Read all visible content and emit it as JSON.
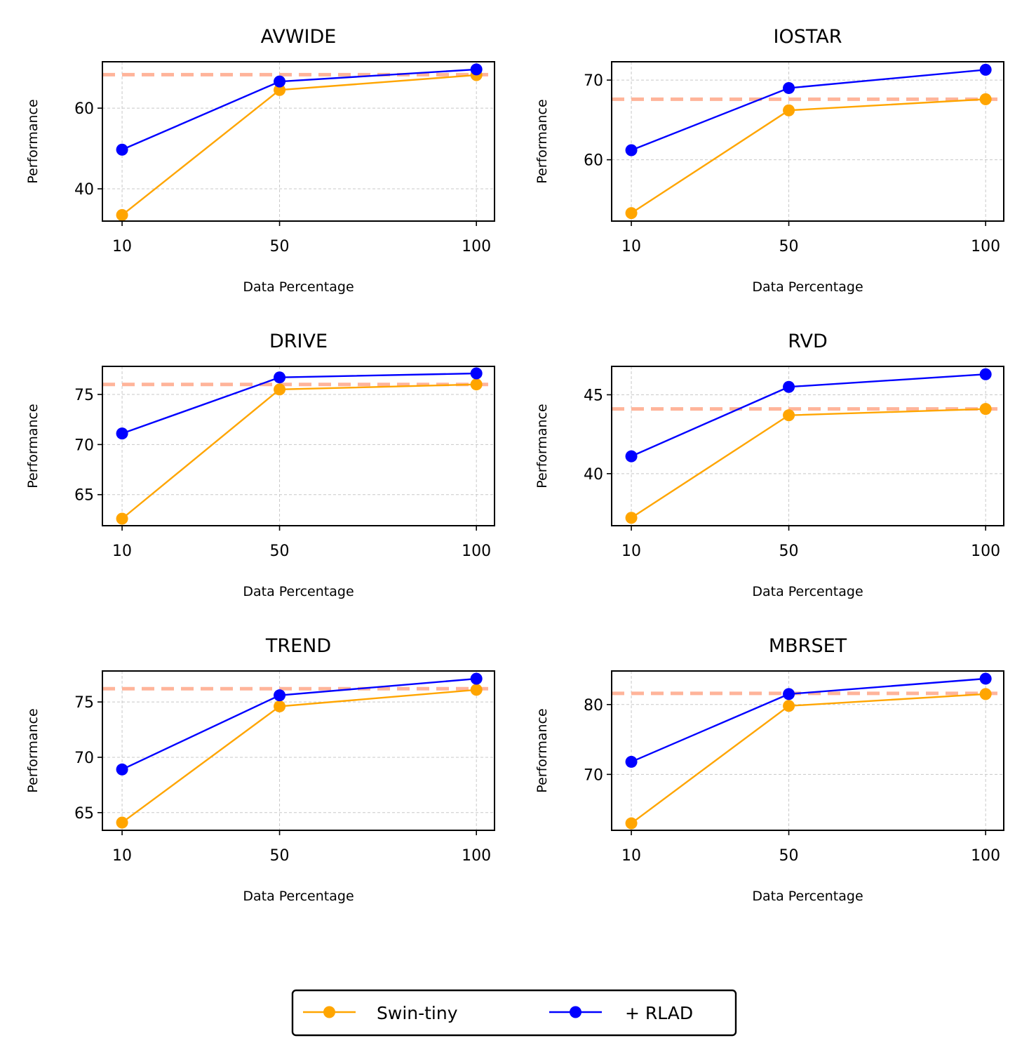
{
  "chart_data": {
    "type": "line",
    "legend": {
      "placement": "bottom-center",
      "entries": [
        {
          "name": "Swin-tiny",
          "color": "#FFA500"
        },
        {
          "name": "+ RLAD",
          "color": "#0000FF"
        }
      ]
    },
    "reference_line_color": "#FFB49A",
    "grid": true,
    "xlabel": "Data Percentage",
    "ylabel": "Performance",
    "x": [
      10,
      50,
      100
    ],
    "x_ticks": [
      "10",
      "50",
      "100"
    ],
    "panels": [
      {
        "title": "AVWIDE",
        "ylim": [
          32,
          71.5
        ],
        "yticks": [
          40,
          60
        ],
        "reference": 68.3,
        "series": [
          {
            "name": "Swin-tiny",
            "values": [
              33.5,
              64.5,
              68.2
            ]
          },
          {
            "name": "+ RLAD",
            "values": [
              49.7,
              66.6,
              69.6
            ]
          }
        ]
      },
      {
        "title": "IOSTAR",
        "ylim": [
          52.3,
          72.3
        ],
        "yticks": [
          60,
          70
        ],
        "reference": 67.6,
        "series": [
          {
            "name": "Swin-tiny",
            "values": [
              53.3,
              66.2,
              67.6
            ]
          },
          {
            "name": "+ RLAD",
            "values": [
              61.2,
              69.0,
              71.3
            ]
          }
        ]
      },
      {
        "title": "DRIVE",
        "ylim": [
          61.9,
          77.8
        ],
        "yticks": [
          65,
          70,
          75
        ],
        "reference": 76.0,
        "series": [
          {
            "name": "Swin-tiny",
            "values": [
              62.6,
              75.5,
              76.0
            ]
          },
          {
            "name": "+ RLAD",
            "values": [
              71.1,
              76.7,
              77.1
            ]
          }
        ]
      },
      {
        "title": "RVD",
        "ylim": [
          36.7,
          46.8
        ],
        "yticks": [
          40,
          45
        ],
        "reference": 44.1,
        "series": [
          {
            "name": "Swin-tiny",
            "values": [
              37.2,
              43.7,
              44.1
            ]
          },
          {
            "name": "+ RLAD",
            "values": [
              41.1,
              45.5,
              46.3
            ]
          }
        ]
      },
      {
        "title": "TREND",
        "ylim": [
          63.4,
          77.8
        ],
        "yticks": [
          65,
          70,
          75
        ],
        "reference": 76.2,
        "series": [
          {
            "name": "Swin-tiny",
            "values": [
              64.1,
              74.6,
              76.1
            ]
          },
          {
            "name": "+ RLAD",
            "values": [
              68.9,
              75.6,
              77.1
            ]
          }
        ]
      },
      {
        "title": "MBRSET",
        "ylim": [
          62.0,
          84.8
        ],
        "yticks": [
          70,
          80
        ],
        "reference": 81.6,
        "series": [
          {
            "name": "Swin-tiny",
            "values": [
              63.0,
              79.8,
              81.5
            ]
          },
          {
            "name": "+ RLAD",
            "values": [
              71.8,
              81.5,
              83.7
            ]
          }
        ]
      }
    ]
  }
}
